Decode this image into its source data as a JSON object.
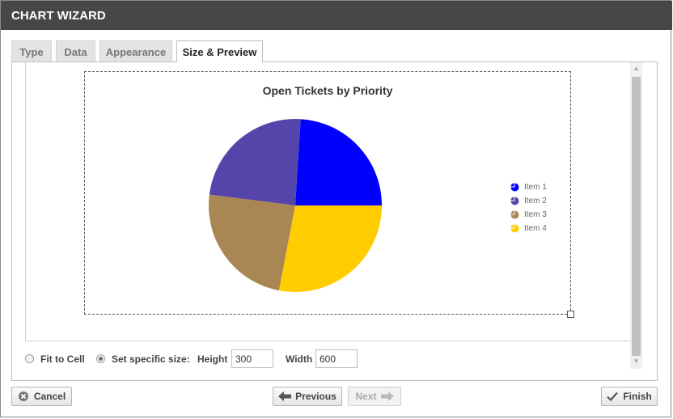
{
  "dialog": {
    "title": "CHART WIZARD"
  },
  "tabs": [
    {
      "label": "Type",
      "active": false
    },
    {
      "label": "Data",
      "active": false
    },
    {
      "label": "Appearance",
      "active": false
    },
    {
      "label": "Size & Preview",
      "active": true
    }
  ],
  "chart_data": {
    "type": "pie",
    "title": "Open Tickets by Priority",
    "categories": [
      "Item 1",
      "Item 2",
      "Item 3",
      "Item 4"
    ],
    "values": [
      24,
      24,
      24,
      28
    ],
    "colors": [
      "#0000ff",
      "#5545aa",
      "#a98755",
      "#ffcc00"
    ],
    "legend_position": "right"
  },
  "size_options": {
    "fit_to_cell_label": "Fit to Cell",
    "specific_size_label": "Set specific size:",
    "selected": "specific",
    "height_label": "Height",
    "height_value": "300",
    "width_label": "Width",
    "width_value": "600"
  },
  "footer": {
    "cancel_label": "Cancel",
    "previous_label": "Previous",
    "next_label": "Next",
    "finish_label": "Finish"
  },
  "icons": {
    "cancel": "cancel-circle-icon",
    "previous": "arrow-left-icon",
    "next": "arrow-right-icon",
    "finish": "checkmark-icon"
  }
}
